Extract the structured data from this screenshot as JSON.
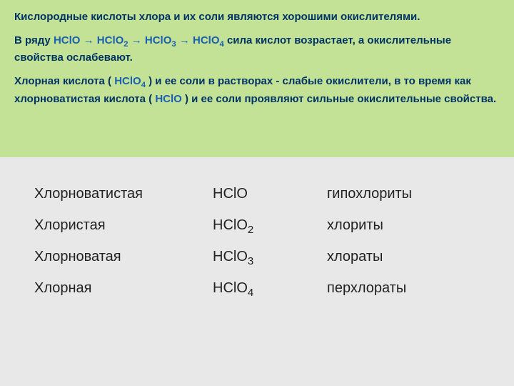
{
  "colors": {
    "top_bg": "#c4e296",
    "bottom_bg": "#e8e8e8",
    "text_dark": "#003366",
    "formula_blue": "#1a5fb4",
    "table_text": "#222222"
  },
  "fontsize": {
    "top_text": 15,
    "table_text": 20
  },
  "heading": "Кислородные кислоты хлора и их соли являются хорошими окислителями.",
  "series": {
    "prefix": "В ряду ",
    "f1": "HClO",
    "f2": "HClO",
    "s2": "2",
    "f3": "HClO",
    "s3": "3",
    "f4": "HClO",
    "s4": "4",
    "suffix": " сила кислот возрастает, а окислительные свойства ослабевают."
  },
  "para2": {
    "t1": "Хлорная кислота ( ",
    "f1": "HClO",
    "s1": "4",
    "t2": " ) и ее соли в растворах - слабые окислители, в то время как хлорноватистая кислота ( ",
    "f2": "HClO",
    "t3": " ) и ее соли проявляют сильные окислительные свойства."
  },
  "rows": [
    {
      "name": "Хлорноватистая",
      "formula": "HClO",
      "sub": "",
      "salt": "гипохлориты"
    },
    {
      "name": "Хлористая",
      "formula": "HClO",
      "sub": "2",
      "salt": "хлориты"
    },
    {
      "name": "Хлорноватая",
      "formula": "HClO",
      "sub": "3",
      "salt": "хлораты"
    },
    {
      "name": "Хлорная",
      "formula": "HClO",
      "sub": "4",
      "salt": "перхлораты"
    }
  ],
  "arrow": "→"
}
